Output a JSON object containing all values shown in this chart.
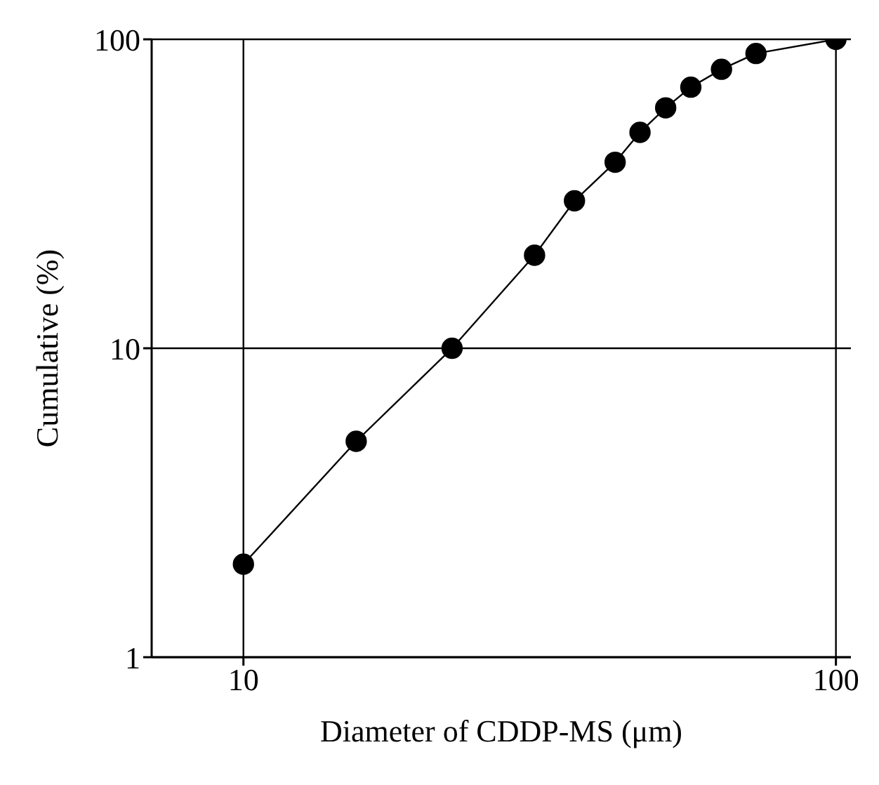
{
  "chart_data": {
    "type": "line",
    "xlabel": "Diameter of CDDP-MS (μm)",
    "ylabel": "Cumulative (%)",
    "log": "xy",
    "xlim": [
      7,
      106
    ],
    "xticks": [
      10,
      100
    ],
    "ylim": [
      1,
      100
    ],
    "yticks": [
      1,
      10,
      100
    ],
    "grid": true,
    "marker": "circle",
    "line_style": "solid",
    "x": [
      10,
      15.5,
      22.5,
      31,
      36.2,
      42.4,
      46.7,
      51.6,
      56.9,
      64.1,
      73.3,
      100
    ],
    "series": [
      {
        "color": "#000000",
        "values": [
          2,
          5,
          10,
          20,
          30,
          40,
          50,
          60,
          70,
          80,
          90,
          100
        ]
      }
    ]
  }
}
